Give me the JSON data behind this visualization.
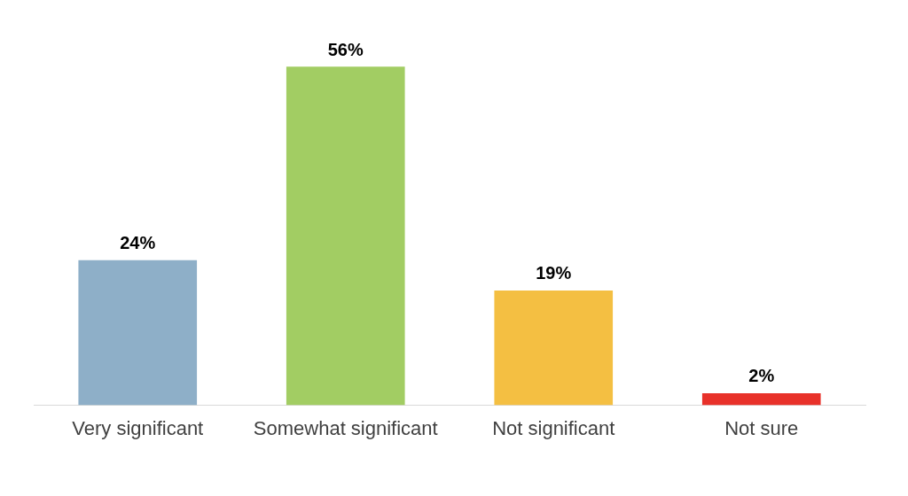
{
  "chart_data": {
    "type": "bar",
    "categories": [
      "Very significant",
      "Somewhat significant",
      "Not significant",
      "Not sure"
    ],
    "values": [
      24,
      56,
      19,
      2
    ],
    "colors": [
      "#8eafc8",
      "#a2cd63",
      "#f4bf42",
      "#e8312a"
    ],
    "value_labels": [
      "24%",
      "56%",
      "19%",
      "2%"
    ],
    "legend": false
  }
}
